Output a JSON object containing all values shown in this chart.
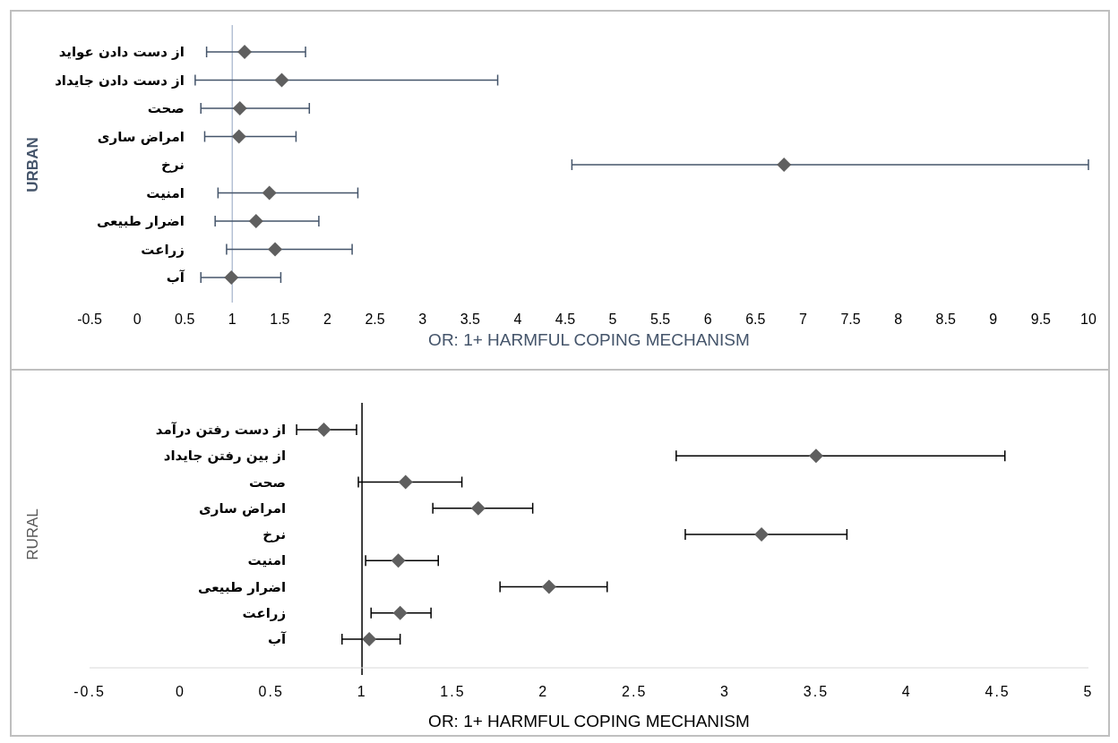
{
  "chart_data": [
    {
      "type": "scatter",
      "orientation": "horizontal",
      "ylabel": "URBAN",
      "xlabel": "OR: 1+ HARMFUL COPING MECHANISM",
      "categories": [
        "از دست دادن عواید",
        "از دست دادن جایداد",
        "صحت",
        "امراض ساری",
        "نرخ",
        "امنیت",
        "اضرار طبیعی",
        "زراعت",
        "آب"
      ],
      "values": [
        1.13,
        1.52,
        1.08,
        1.07,
        6.8,
        1.39,
        1.25,
        1.45,
        0.99
      ],
      "errors": [
        [
          0.73,
          1.77
        ],
        [
          0.61,
          3.79
        ],
        [
          0.67,
          1.81
        ],
        [
          0.71,
          1.67
        ],
        [
          4.57,
          10
        ],
        [
          0.85,
          2.32
        ],
        [
          0.82,
          1.91
        ],
        [
          0.94,
          2.26
        ],
        [
          0.67,
          1.51
        ]
      ],
      "color": "#5f5f5f",
      "marker": "diamond",
      "grid": false,
      "xlim": [
        -0.5,
        10
      ],
      "xticks": [
        -0.5,
        0,
        0.5,
        1,
        1.5,
        2,
        2.5,
        3,
        3.5,
        4,
        4.5,
        5,
        5.5,
        6,
        6.5,
        7,
        7.5,
        8,
        8.5,
        9,
        9.5,
        10
      ],
      "ref_lines": [
        {
          "axis": "x",
          "value": 1,
          "color": "#b4c0d4"
        }
      ]
    },
    {
      "type": "scatter",
      "orientation": "horizontal",
      "ylabel": "RURAL",
      "xlabel": "OR: 1+ HARMFUL COPING MECHANISM",
      "categories": [
        "از دست رفتن درآمد",
        "از بین رفتن جایداد",
        "صحت",
        "امراض ساری",
        "نرخ",
        "امنیت",
        "اضرار طبیعی",
        "زراعت",
        "آب"
      ],
      "values": [
        0.79,
        3.5,
        1.24,
        1.64,
        3.2,
        1.2,
        2.03,
        1.21,
        1.04
      ],
      "errors": [
        [
          0.64,
          0.97
        ],
        [
          2.73,
          4.54
        ],
        [
          0.98,
          1.55
        ],
        [
          1.39,
          1.94
        ],
        [
          2.78,
          3.67
        ],
        [
          1.02,
          1.42
        ],
        [
          1.76,
          2.35
        ],
        [
          1.05,
          1.38
        ],
        [
          0.89,
          1.21
        ]
      ],
      "color": "#5f5f5f",
      "marker": "diamond",
      "grid": false,
      "xlim": [
        -0.5,
        5
      ],
      "xticks": [
        -0.5,
        0,
        0.5,
        1,
        1.5,
        2,
        2.5,
        3,
        3.5,
        4,
        4.5,
        5
      ],
      "ref_lines": [
        {
          "axis": "x",
          "value": 1,
          "color": "#000000"
        }
      ]
    }
  ]
}
